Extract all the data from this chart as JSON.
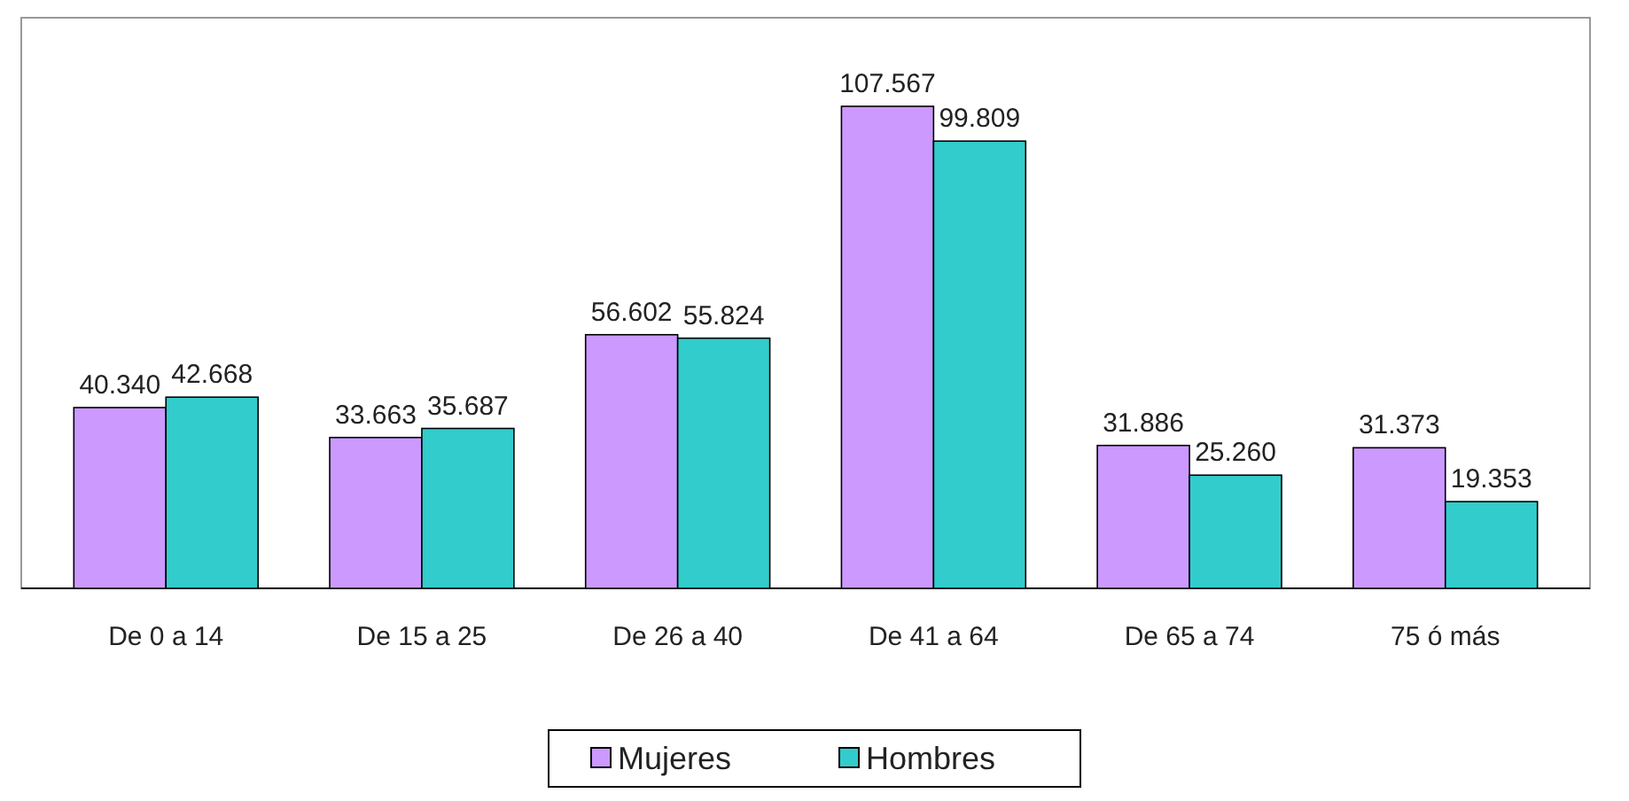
{
  "chart_data": {
    "type": "bar",
    "categories": [
      "De 0 a 14",
      "De 15 a 25",
      "De 26 a 40",
      "De 41 a 64",
      "De 65 a 74",
      "75 ó más"
    ],
    "series": [
      {
        "name": "Mujeres",
        "color": "#cc99ff",
        "values": [
          40340,
          33663,
          56602,
          107567,
          31886,
          31373
        ],
        "value_labels": [
          "40.340",
          "33.663",
          "56.602",
          "107.567",
          "31.886",
          "31.373"
        ]
      },
      {
        "name": "Hombres",
        "color": "#33cccc",
        "values": [
          42668,
          35687,
          55824,
          99809,
          25260,
          19353
        ],
        "value_labels": [
          "42.668",
          "35.687",
          "55.824",
          "99.809",
          "25.260",
          "19.353"
        ]
      }
    ],
    "legend": "bottom"
  }
}
